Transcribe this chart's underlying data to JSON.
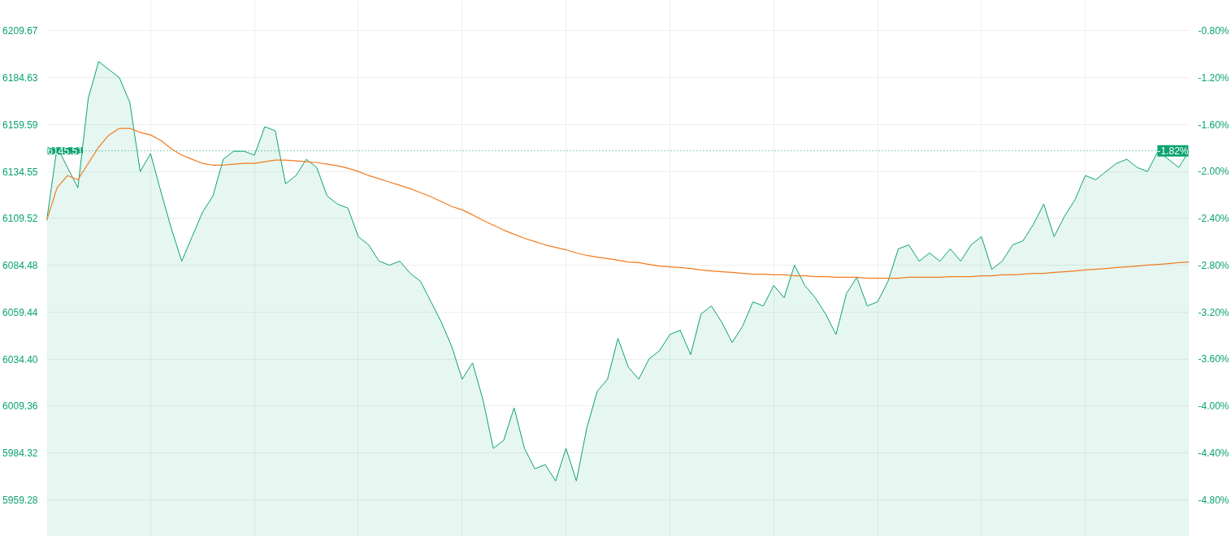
{
  "chart_data": {
    "type": "area",
    "categories": [
      null,
      null,
      null,
      null,
      null,
      null,
      null,
      null,
      null,
      null,
      null,
      null,
      null,
      null,
      null,
      null,
      null,
      null,
      null,
      null,
      null,
      null,
      null,
      null,
      null,
      null,
      null,
      null,
      null,
      null,
      null,
      null,
      null,
      null,
      null,
      null,
      null,
      null,
      null,
      null,
      null,
      null,
      null,
      null,
      null,
      null,
      null,
      null,
      null,
      null,
      null,
      null,
      null,
      null,
      null,
      null,
      null,
      null,
      null,
      null,
      null,
      null,
      null,
      null,
      null,
      null,
      null,
      null,
      null,
      null,
      null,
      null,
      null,
      null,
      null,
      null,
      null,
      null,
      null,
      null,
      null,
      null,
      null,
      null,
      null,
      null,
      null,
      null,
      null,
      null,
      null,
      null,
      null,
      null,
      null,
      null,
      null,
      null,
      null,
      null,
      null,
      null,
      null,
      null,
      null,
      null,
      null,
      null,
      null,
      null,
      null
    ],
    "ylim": [
      5939.7,
      6225.8
    ],
    "yticks": [
      5959.28,
      5984.32,
      6009.36,
      {
        "value": 6034.4,
        "label": "6034.40"
      },
      6059.44,
      6084.48,
      6109.52,
      6134.55,
      6159.59,
      6184.63,
      6209.67
    ],
    "y2lim": [
      -5.11,
      -0.54
    ],
    "y2ticks": [
      {
        "value": -4.8,
        "label": "-4.80%"
      },
      {
        "value": -4.4,
        "label": "-4.40%"
      },
      {
        "value": -4.0,
        "label": "-4.00%"
      },
      {
        "value": -3.6,
        "label": "-3.60%"
      },
      {
        "value": -3.2,
        "label": "-3.20%"
      },
      {
        "value": -2.8,
        "label": "-2.80%"
      },
      {
        "value": -2.4,
        "label": "-2.40%"
      },
      {
        "value": -2.0,
        "label": "-2.00%"
      },
      {
        "value": -1.6,
        "label": "-1.60%"
      },
      {
        "value": -1.2,
        "label": "-1.20%"
      },
      {
        "value": -0.8,
        "label": "-0.80%"
      }
    ],
    "grid": true,
    "series": [
      {
        "type": "area",
        "color": "#0ba36e",
        "values": [
          6108.4,
          6147.5,
          6136.6,
          6125.8,
          6173.6,
          6193.2,
          6188.8,
          6184.5,
          6171.4,
          6134.5,
          6144.0,
          6123.6,
          6104.0,
          6086.6,
          6099.7,
          6112.7,
          6121.4,
          6141.0,
          6145.3,
          6145.3,
          6143.2,
          6158.4,
          6156.2,
          6127.9,
          6132.3,
          6141.0,
          6136.6,
          6121.4,
          6117.1,
          6114.9,
          6099.7,
          6095.3,
          6086.6,
          6084.5,
          6086.6,
          6080.1,
          6075.8,
          6064.9,
          6054.0,
          6041.0,
          6023.6,
          6032.3,
          6012.7,
          5986.7,
          5991.0,
          6008.4,
          5986.7,
          5975.8,
          5978.0,
          5969.3,
          5986.7,
          5969.3,
          5997.5,
          6017.1,
          6023.6,
          6045.4,
          6030.1,
          6023.6,
          6034.5,
          6038.8,
          6047.5,
          6049.7,
          6036.7,
          6058.4,
          6062.7,
          6054.0,
          6043.2,
          6051.9,
          6064.9,
          6062.7,
          6073.6,
          6067.1,
          6084.5,
          6073.6,
          6067.1,
          6058.4,
          6047.5,
          6069.3,
          6078.0,
          6062.7,
          6064.9,
          6075.8,
          6093.2,
          6095.3,
          6086.6,
          6091.0,
          6086.6,
          6093.2,
          6086.6,
          6095.3,
          6099.7,
          6082.3,
          6086.6,
          6095.3,
          6097.5,
          6106.2,
          6117.1,
          6099.7,
          6110.6,
          6119.3,
          6132.3,
          6130.1,
          6134.5,
          6138.8,
          6141.0,
          6136.6,
          6134.5,
          6145.3,
          6141.0,
          6136.6,
          6145.51
        ]
      },
      {
        "type": "line",
        "color": "#f07b21",
        "values": [
          6108.4,
          6125.8,
          6132.3,
          6130.1,
          6138.8,
          6147.5,
          6154.0,
          6157.5,
          6157.5,
          6155.3,
          6154.0,
          6151.0,
          6146.6,
          6143.2,
          6141.0,
          6138.8,
          6137.9,
          6137.9,
          6138.4,
          6138.8,
          6138.8,
          6139.7,
          6140.6,
          6140.6,
          6140.1,
          6139.7,
          6139.2,
          6138.4,
          6137.5,
          6136.2,
          6134.5,
          6132.3,
          6130.6,
          6128.8,
          6127.1,
          6125.3,
          6123.2,
          6121.0,
          6118.4,
          6115.8,
          6114.0,
          6111.4,
          6108.4,
          6105.8,
          6103.2,
          6101.0,
          6098.8,
          6097.1,
          6095.3,
          6094.0,
          6092.7,
          6091.0,
          6089.7,
          6088.8,
          6088.0,
          6087.1,
          6086.2,
          6085.8,
          6084.9,
          6084.0,
          6083.6,
          6083.2,
          6082.7,
          6081.9,
          6081.4,
          6081.0,
          6080.6,
          6080.1,
          6079.7,
          6079.7,
          6079.3,
          6079.3,
          6078.8,
          6078.8,
          6078.4,
          6078.4,
          6078.0,
          6078.0,
          6078.0,
          6077.5,
          6077.5,
          6077.5,
          6077.5,
          6078.0,
          6078.0,
          6078.0,
          6078.0,
          6078.4,
          6078.4,
          6078.4,
          6078.8,
          6078.8,
          6079.3,
          6079.3,
          6079.7,
          6080.1,
          6080.1,
          6080.6,
          6081.0,
          6081.4,
          6081.9,
          6082.3,
          6082.7,
          6083.2,
          6083.6,
          6084.0,
          6084.5,
          6084.9,
          6085.3,
          6085.8,
          6086.2
        ]
      }
    ],
    "ref_lines": [
      {
        "axis": "y",
        "value": 6145.51,
        "label": "6145.51",
        "color": "#0ba36e",
        "line_style": "dotted"
      }
    ],
    "annotations": [
      "-1.82%"
    ]
  }
}
